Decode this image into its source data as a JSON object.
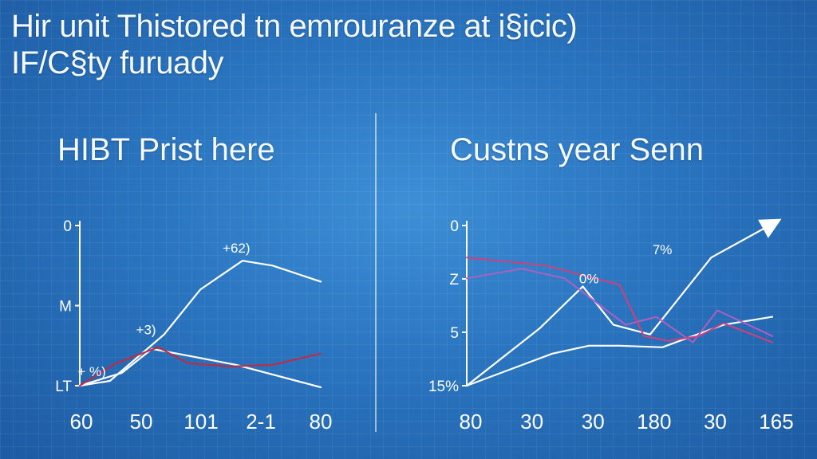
{
  "headline": {
    "line1": "Hir unit Thistored tn emrouranze at i§icic)",
    "line2": "IF/C§ty furuady"
  },
  "chart_data": [
    {
      "type": "line",
      "title": "HIBT Prist here",
      "x_ticks": [
        "60",
        "50",
        "101",
        "2-1",
        "80"
      ],
      "y_ticks": [
        "0",
        "M",
        "LT"
      ],
      "xlim": [
        0,
        4
      ],
      "ylim": [
        0,
        100
      ],
      "series": [
        {
          "color": "#ffffff",
          "x": [
            0,
            0.5,
            1.4,
            2.0,
            2.7,
            3.2,
            4.0
          ],
          "y": [
            0,
            3,
            32,
            60,
            78,
            75,
            65
          ]
        },
        {
          "color": "#ffffff",
          "x": [
            0,
            0.7,
            1.2,
            1.9,
            2.6,
            4.0
          ],
          "y": [
            0,
            8,
            23,
            18,
            13,
            -1
          ]
        },
        {
          "color": "#c8283c",
          "x": [
            0,
            0.6,
            1.3,
            1.8,
            2.5,
            3.2,
            4.0
          ],
          "y": [
            0,
            14,
            24,
            14,
            12,
            13,
            20
          ]
        }
      ],
      "annotations": [
        {
          "text": "+62)",
          "x": 2.6,
          "y": 83
        },
        {
          "text": "+3)",
          "x": 1.1,
          "y": 32
        },
        {
          "text": "+ %)",
          "x": 0.2,
          "y": 6
        }
      ]
    },
    {
      "type": "line",
      "title": "Custns year Senn",
      "x_ticks": [
        "80",
        "30",
        "30",
        "180",
        "30",
        "165"
      ],
      "y_ticks": [
        "0",
        "Z",
        "5",
        "15%"
      ],
      "xlim": [
        0,
        5
      ],
      "ylim": [
        0,
        100
      ],
      "series": [
        {
          "color": "#ffffff",
          "x": [
            0,
            1.2,
            1.9,
            2.4,
            3.0,
            4.0,
            5.0
          ],
          "y": [
            0,
            36,
            62,
            38,
            32,
            80,
            101
          ]
        },
        {
          "color": "#ffffff",
          "x": [
            0,
            1.4,
            2.0,
            2.5,
            3.2,
            4.2,
            5.0
          ],
          "y": [
            0,
            20,
            25,
            25,
            24,
            38,
            43
          ]
        },
        {
          "color": "#b05fc0",
          "x": [
            0,
            0.9,
            1.6,
            2.6,
            3.1,
            3.7,
            4.1,
            5.0
          ],
          "y": [
            67,
            73,
            67,
            38,
            43,
            27,
            47,
            31
          ]
        },
        {
          "color": "#d0407a",
          "x": [
            0,
            1.3,
            2.5,
            2.9,
            3.3,
            3.8,
            4.2,
            5.0
          ],
          "y": [
            80,
            75,
            63,
            31,
            28,
            31,
            39,
            27
          ]
        }
      ],
      "annotations": [
        {
          "text": "0%",
          "x": 2.0,
          "y": 64
        },
        {
          "text": "7%",
          "x": 3.2,
          "y": 82
        }
      ]
    }
  ]
}
